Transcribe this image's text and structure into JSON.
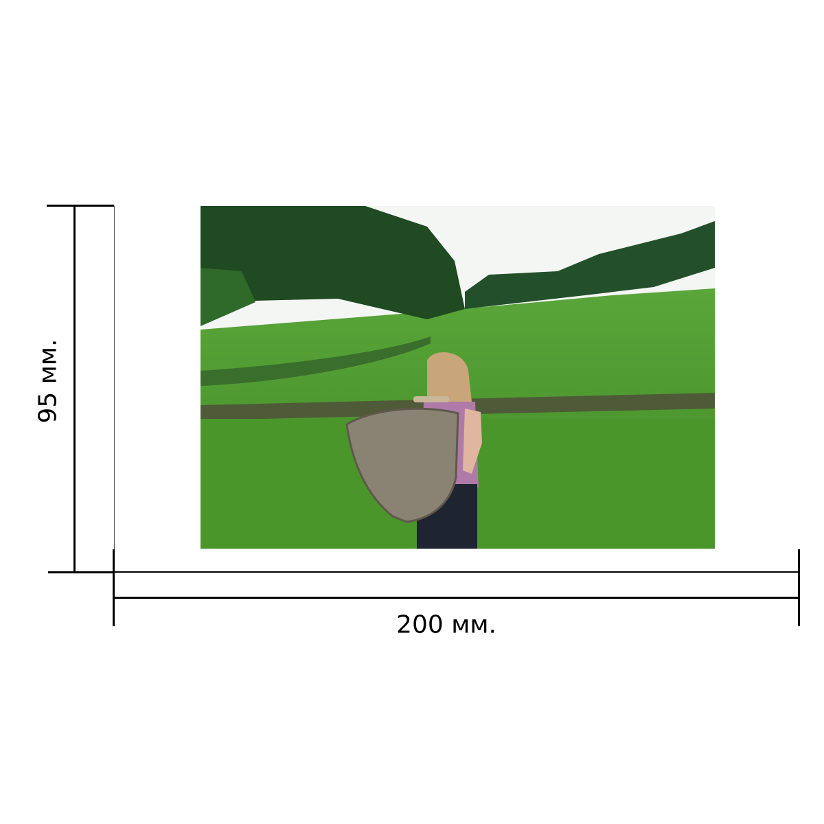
{
  "dimensions": {
    "height_label": "95 мм.",
    "width_label": "200 мм."
  },
  "photo": {
    "subject": "girl-with-wicker-basket-in-field",
    "colors": {
      "grass": "#4f9a2e",
      "trees": "#1f4a22",
      "sky": "#f4f6f4"
    }
  }
}
